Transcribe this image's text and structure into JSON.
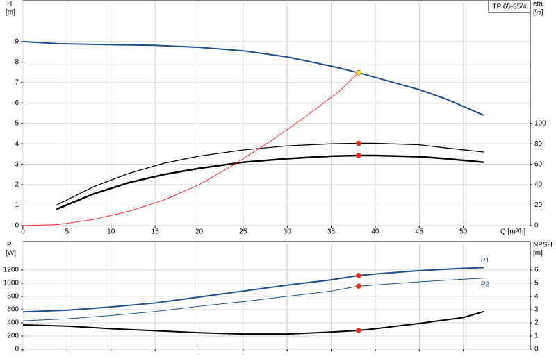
{
  "chart_data": [
    {
      "type": "line",
      "title": "TP 65-85/4",
      "ylabel": "H",
      "yunit": "[m]",
      "y2label": "eta",
      "y2unit": "[%]",
      "xlabel": "Q [m³/h]",
      "xlim": [
        0,
        57.6
      ],
      "xticks": [
        0,
        5,
        10,
        15,
        20,
        25,
        30,
        35,
        40,
        45,
        50
      ],
      "ylim": [
        0,
        11
      ],
      "yticks": [
        0,
        1,
        2,
        3,
        4,
        5,
        6,
        7,
        8,
        9
      ],
      "y2lim": [
        0,
        220
      ],
      "y2ticks": [
        0,
        20,
        40,
        60,
        80,
        100
      ],
      "grid": true,
      "show_xtick_labels": true,
      "series": [
        {
          "color": "#1f4e8c",
          "line_width": 2,
          "x": [
            0,
            4,
            10,
            15,
            20,
            25,
            30,
            35,
            38.1,
            40,
            45,
            48,
            52.3
          ],
          "values": [
            9.0,
            8.9,
            8.85,
            8.82,
            8.72,
            8.55,
            8.25,
            7.8,
            7.48,
            7.25,
            6.65,
            6.2,
            5.4
          ]
        },
        {
          "color": "#000000",
          "line_width": 1.3,
          "axis": "y2",
          "x": [
            3.8,
            8,
            12,
            16,
            20,
            25,
            30,
            35,
            38.1,
            40,
            45,
            48,
            52.3
          ],
          "values": [
            20,
            38,
            51,
            61,
            68,
            74,
            78,
            80,
            80.5,
            80.5,
            79,
            76,
            72
          ]
        },
        {
          "color": "#000000",
          "line_width": 2.5,
          "axis": "y2",
          "x": [
            3.8,
            8,
            12,
            16,
            20,
            25,
            30,
            35,
            38.1,
            40,
            45,
            48,
            52.3
          ],
          "values": [
            16,
            31,
            42,
            50,
            56,
            62,
            65.5,
            68,
            68.6,
            68.6,
            67.5,
            65.5,
            62
          ]
        },
        {
          "color": "#ff3030",
          "line_width": 1,
          "x": [
            0,
            4,
            8,
            12,
            16,
            20,
            24,
            28,
            32,
            36,
            38.1
          ],
          "values": [
            0,
            0.05,
            0.3,
            0.7,
            1.25,
            2.0,
            3.0,
            4.1,
            5.3,
            6.6,
            7.48
          ]
        },
        {
          "color": "#ffe020",
          "marker": true,
          "x": [
            38.1
          ],
          "values": [
            7.48
          ]
        },
        {
          "color": "#ff2020",
          "marker": true,
          "axis": "y2",
          "x": [
            38.1,
            38.1
          ],
          "values": [
            80.5,
            68.6
          ]
        }
      ]
    },
    {
      "type": "line",
      "ylabel": "P",
      "yunit": "[W]",
      "y2label": "NPSH",
      "y2unit": "[m]",
      "xlim": [
        0,
        57.6
      ],
      "xticks": [
        0,
        5,
        10,
        15,
        20,
        25,
        30,
        35,
        40,
        45,
        50
      ],
      "ylim": [
        0,
        1630
      ],
      "yticks": [
        0,
        200,
        400,
        600,
        800,
        1000,
        1200
      ],
      "y2lim": [
        0,
        8.15
      ],
      "y2ticks": [
        0,
        1,
        2,
        3,
        4,
        5,
        6
      ],
      "grid": true,
      "show_xtick_labels": false,
      "series": [
        {
          "name": "P1",
          "color": "#1f4e8c",
          "line_width": 2,
          "x": [
            0,
            5,
            10,
            15,
            20,
            25,
            30,
            35,
            38.1,
            40,
            45,
            50,
            52.3
          ],
          "values": [
            565,
            590,
            640,
            700,
            790,
            880,
            970,
            1050,
            1115,
            1140,
            1190,
            1225,
            1235
          ]
        },
        {
          "name": "P2",
          "color": "#1f4e8c",
          "line_width": 1,
          "x": [
            0,
            5,
            10,
            15,
            20,
            25,
            30,
            35,
            38.1,
            45,
            50,
            52.3
          ],
          "values": [
            430,
            460,
            510,
            570,
            650,
            720,
            800,
            880,
            955,
            1020,
            1060,
            1075
          ]
        },
        {
          "color": "#000000",
          "line_width": 2,
          "axis": "y2",
          "x": [
            0,
            5,
            10,
            15,
            20,
            25,
            30,
            35,
            38.1,
            40,
            45,
            50,
            52.3
          ],
          "values": [
            1.84,
            1.75,
            1.55,
            1.4,
            1.25,
            1.15,
            1.15,
            1.3,
            1.42,
            1.55,
            1.95,
            2.4,
            2.85
          ]
        },
        {
          "color": "#ff2020",
          "marker": true,
          "x": [
            38.1,
            38.1
          ],
          "values": [
            1115,
            955
          ]
        },
        {
          "color": "#ff2020",
          "marker": true,
          "axis": "y2",
          "x": [
            38.1
          ],
          "values": [
            1.42
          ]
        }
      ]
    }
  ]
}
